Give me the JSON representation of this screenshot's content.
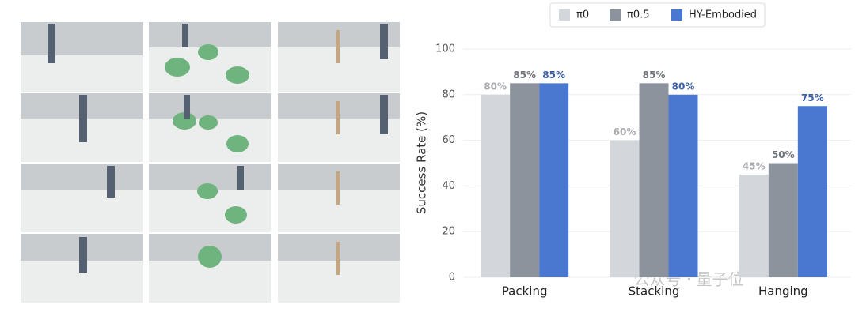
{
  "chart_data": {
    "type": "bar",
    "y_label": "Success Rate (%)",
    "categories": [
      "Packing",
      "Stacking",
      "Hanging"
    ],
    "series": [
      {
        "name": "π0",
        "color": "#d3d6da",
        "values": [
          80,
          60,
          45
        ],
        "value_labels": [
          "80%",
          "60%",
          "45%"
        ]
      },
      {
        "name": "π0.5",
        "color": "#8d939c",
        "values": [
          85,
          85,
          50
        ],
        "value_labels": [
          "85%",
          "85%",
          "50%"
        ]
      },
      {
        "name": "HY-Embodied",
        "color": "#4a78d1",
        "values": [
          85,
          80,
          75
        ],
        "value_labels": [
          "85%",
          "80%",
          "75%"
        ]
      }
    ],
    "ylim": [
      0,
      100
    ],
    "yticks": [
      0,
      20,
      40,
      60,
      80,
      100
    ],
    "grid": true,
    "legend": "top"
  },
  "watermark": "公众号 · 量子位"
}
